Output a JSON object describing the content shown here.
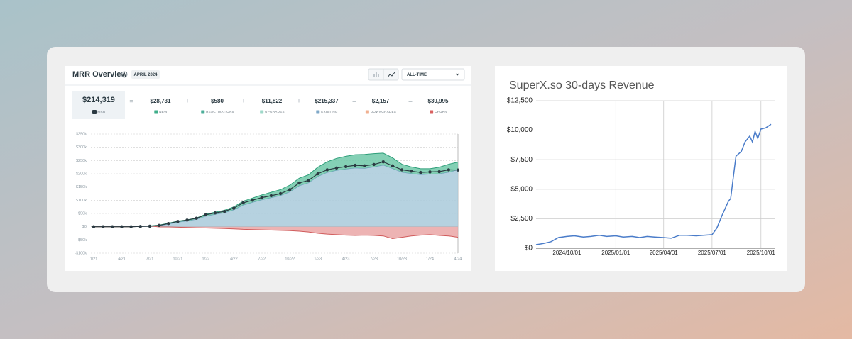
{
  "chart_data": [
    {
      "type": "area",
      "title": "MRR Overview",
      "badge": "APRIL 2024",
      "range_select": "ALL-TIME",
      "summary": [
        {
          "value": "$214,319",
          "label": "MRR",
          "color": "#2b3a42"
        },
        {
          "op": "=",
          "value": "$28,731",
          "label": "NEW",
          "color": "#3fae8a"
        },
        {
          "op": "+",
          "value": "$580",
          "label": "REACTIVATIONS",
          "color": "#4cae99"
        },
        {
          "op": "+",
          "value": "$11,822",
          "label": "UPGRADES",
          "color": "#9ed8c8"
        },
        {
          "op": "+",
          "value": "$215,337",
          "label": "EXISTING",
          "color": "#7fa8c8"
        },
        {
          "op": "–",
          "value": "$2,157",
          "label": "DOWNGRADES",
          "color": "#f0b090"
        },
        {
          "op": "–",
          "value": "$39,995",
          "label": "CHURN",
          "color": "#d96060"
        }
      ],
      "categories": [
        "1/21",
        null,
        null,
        "4/21",
        null,
        null,
        "7/21",
        null,
        null,
        "10/21",
        null,
        null,
        "1/22",
        null,
        null,
        "4/22",
        null,
        null,
        "7/22",
        null,
        null,
        "10/22",
        null,
        null,
        "1/23",
        null,
        null,
        "4/23",
        null,
        null,
        "7/23",
        null,
        null,
        "10/23",
        null,
        null,
        "1/24",
        null,
        null,
        "4/24"
      ],
      "ylim": [
        -100,
        350
      ],
      "yticks": [
        {
          "value": -100,
          "label": "-$100k"
        },
        {
          "value": -50,
          "label": "-$50k"
        },
        {
          "value": 0,
          "label": "$0"
        },
        {
          "value": 50,
          "label": "$50k"
        },
        {
          "value": 100,
          "label": "$100k"
        },
        {
          "value": 150,
          "label": "$150k"
        },
        {
          "value": 200,
          "label": "$200k"
        },
        {
          "value": 250,
          "label": "$250k"
        },
        {
          "value": 300,
          "label": "$300k"
        },
        {
          "value": 350,
          "label": "$350k"
        }
      ],
      "grid": true,
      "series": [
        {
          "color": "#a9cadb",
          "stroke": "#6b9cbb",
          "values": [
            0,
            0,
            0,
            0,
            0,
            1,
            2,
            4,
            10,
            17,
            22,
            28,
            40,
            47,
            53,
            64,
            82,
            92,
            102,
            110,
            118,
            132,
            155,
            166,
            190,
            205,
            213,
            218,
            222,
            221,
            226,
            233,
            220,
            206,
            201,
            197,
            199,
            200,
            206,
            215.337
          ]
        },
        {
          "color": "#6fc8a8",
          "stroke": "#2e9e79",
          "values": [
            0,
            0,
            0,
            0,
            0,
            0,
            1,
            2,
            3,
            4,
            4,
            5,
            7,
            8,
            9,
            11,
            14,
            16,
            18,
            20,
            22,
            25,
            28,
            30,
            35,
            40,
            45,
            48,
            50,
            52,
            50,
            45,
            40,
            30,
            25,
            22,
            20,
            25,
            30,
            28.731
          ]
        },
        {
          "color": "#eaa6a6",
          "stroke": "#d05b5b",
          "values": [
            0,
            0,
            0,
            0,
            0,
            0,
            0,
            -1,
            -1,
            -2,
            -3,
            -4,
            -5,
            -6,
            -7,
            -8,
            -10,
            -11,
            -12,
            -13,
            -14,
            -15,
            -17,
            -20,
            -25,
            -28,
            -30,
            -32,
            -33,
            -32,
            -33,
            -35,
            -45,
            -40,
            -35,
            -32,
            -30,
            -33,
            -35,
            -39.995
          ]
        }
      ],
      "line": {
        "color": "#2b3a42",
        "values": [
          0,
          0,
          0,
          0,
          0,
          1,
          2,
          5,
          12,
          20,
          25,
          32,
          45,
          52,
          58,
          70,
          90,
          100,
          110,
          117,
          125,
          140,
          165,
          175,
          200,
          215,
          222,
          227,
          232,
          230,
          235,
          245,
          230,
          215,
          210,
          205,
          207,
          208,
          215,
          214.319
        ]
      }
    },
    {
      "type": "line",
      "title": "SuperX.so 30-days Revenue",
      "color": "#4a7cc9",
      "grid": true,
      "xlim": [
        "2024/08/04",
        "2025/10/20"
      ],
      "xticks": [
        "2024/10/01",
        "2025/01/01",
        "2025/04/01",
        "2025/07/01",
        "2025/10/01"
      ],
      "ylim": [
        0,
        12500
      ],
      "yticks": [
        {
          "value": 0,
          "label": "$0"
        },
        {
          "value": 2500,
          "label": "$2,500"
        },
        {
          "value": 5000,
          "label": "$5,000"
        },
        {
          "value": 7500,
          "label": "$7,500"
        },
        {
          "value": 10000,
          "label": "$10,000"
        },
        {
          "value": 12500,
          "label": "$12,500"
        }
      ],
      "x": [
        "2024/08/04",
        "2024/08/18",
        "2024/09/01",
        "2024/09/15",
        "2024/10/01",
        "2024/10/15",
        "2024/11/01",
        "2024/11/15",
        "2024/12/01",
        "2024/12/15",
        "2025/01/01",
        "2025/01/15",
        "2025/02/01",
        "2025/02/15",
        "2025/03/01",
        "2025/03/15",
        "2025/04/01",
        "2025/04/15",
        "2025/05/01",
        "2025/05/15",
        "2025/06/01",
        "2025/06/15",
        "2025/07/01",
        "2025/07/10",
        "2025/07/20",
        "2025/08/01",
        "2025/08/05",
        "2025/08/10",
        "2025/08/15",
        "2025/08/25",
        "2025/09/01",
        "2025/09/10",
        "2025/09/15",
        "2025/09/20",
        "2025/09/25",
        "2025/10/01",
        "2025/10/10",
        "2025/10/20"
      ],
      "values": [
        300,
        400,
        550,
        900,
        1000,
        1050,
        950,
        1000,
        1100,
        1000,
        1050,
        950,
        1000,
        900,
        1000,
        950,
        900,
        850,
        1100,
        1100,
        1050,
        1100,
        1150,
        1700,
        2800,
        4000,
        4200,
        6000,
        7800,
        8200,
        9000,
        9500,
        9000,
        9900,
        9300,
        10100,
        10200,
        10500
      ]
    }
  ]
}
